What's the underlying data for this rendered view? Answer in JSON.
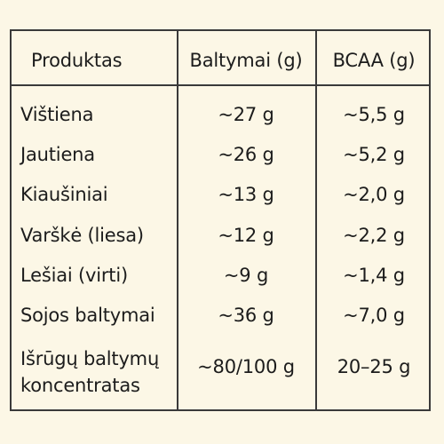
{
  "table": {
    "headers": [
      "Produktas",
      "Baltymai (g)",
      "BCAA (g)"
    ],
    "rows": [
      {
        "product": "Vištiena",
        "protein": "~27 g",
        "bcaa": "~5,5 g"
      },
      {
        "product": "Jautiena",
        "protein": "~26 g",
        "bcaa": "~5,2 g"
      },
      {
        "product": "Kiaušiniai",
        "protein": "~13 g",
        "bcaa": "~2,0 g"
      },
      {
        "product": "Varškė (liesa)",
        "protein": "~12 g",
        "bcaa": "~2,2 g"
      },
      {
        "product": "Lešiai (virti)",
        "protein": "~9 g",
        "bcaa": "~1,4 g"
      },
      {
        "product": "Sojos baltymai",
        "protein": "~36 g",
        "bcaa": "~7,0 g"
      },
      {
        "product_line1": "Išrūgų baltymų",
        "product_line2": "koncentratas",
        "protein": "~80/100 g",
        "bcaa": "20–25 g"
      }
    ]
  },
  "colors": {
    "background": "#fcf7e6",
    "border": "#3a3a3a",
    "text": "#1c1c1c"
  }
}
